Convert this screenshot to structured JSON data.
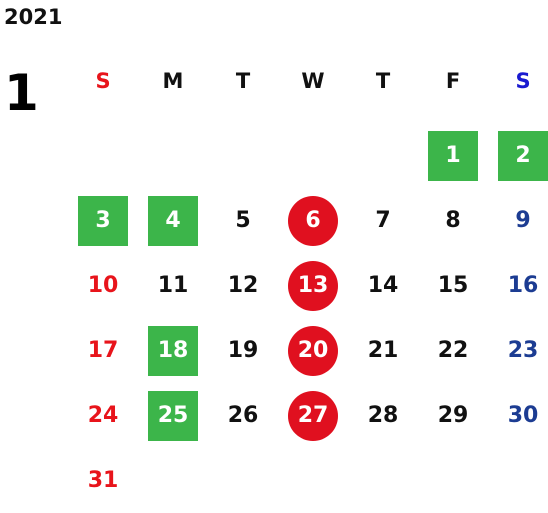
{
  "year": "2021",
  "month": "1",
  "weekdays": [
    "S",
    "M",
    "T",
    "W",
    "T",
    "F",
    "S"
  ],
  "days": [
    {
      "label": "1",
      "col": 6,
      "row": 1,
      "style": "green"
    },
    {
      "label": "2",
      "col": 7,
      "row": 1,
      "style": "green"
    },
    {
      "label": "3",
      "col": 1,
      "row": 2,
      "style": "green"
    },
    {
      "label": "4",
      "col": 2,
      "row": 2,
      "style": "green"
    },
    {
      "label": "5",
      "col": 3,
      "row": 2,
      "style": "plain"
    },
    {
      "label": "6",
      "col": 4,
      "row": 2,
      "style": "red"
    },
    {
      "label": "7",
      "col": 5,
      "row": 2,
      "style": "plain"
    },
    {
      "label": "8",
      "col": 6,
      "row": 2,
      "style": "plain"
    },
    {
      "label": "9",
      "col": 7,
      "row": 2,
      "style": "plain"
    },
    {
      "label": "10",
      "col": 1,
      "row": 3,
      "style": "plain"
    },
    {
      "label": "11",
      "col": 2,
      "row": 3,
      "style": "plain"
    },
    {
      "label": "12",
      "col": 3,
      "row": 3,
      "style": "plain"
    },
    {
      "label": "13",
      "col": 4,
      "row": 3,
      "style": "red"
    },
    {
      "label": "14",
      "col": 5,
      "row": 3,
      "style": "plain"
    },
    {
      "label": "15",
      "col": 6,
      "row": 3,
      "style": "plain"
    },
    {
      "label": "16",
      "col": 7,
      "row": 3,
      "style": "plain"
    },
    {
      "label": "17",
      "col": 1,
      "row": 4,
      "style": "plain"
    },
    {
      "label": "18",
      "col": 2,
      "row": 4,
      "style": "green"
    },
    {
      "label": "19",
      "col": 3,
      "row": 4,
      "style": "plain"
    },
    {
      "label": "20",
      "col": 4,
      "row": 4,
      "style": "red"
    },
    {
      "label": "21",
      "col": 5,
      "row": 4,
      "style": "plain"
    },
    {
      "label": "22",
      "col": 6,
      "row": 4,
      "style": "plain"
    },
    {
      "label": "23",
      "col": 7,
      "row": 4,
      "style": "plain"
    },
    {
      "label": "24",
      "col": 1,
      "row": 5,
      "style": "plain"
    },
    {
      "label": "25",
      "col": 2,
      "row": 5,
      "style": "green"
    },
    {
      "label": "26",
      "col": 3,
      "row": 5,
      "style": "plain"
    },
    {
      "label": "27",
      "col": 4,
      "row": 5,
      "style": "red"
    },
    {
      "label": "28",
      "col": 5,
      "row": 5,
      "style": "plain"
    },
    {
      "label": "29",
      "col": 6,
      "row": 5,
      "style": "plain"
    },
    {
      "label": "30",
      "col": 7,
      "row": 5,
      "style": "plain"
    },
    {
      "label": "31",
      "col": 1,
      "row": 6,
      "style": "plain"
    }
  ],
  "colors": {
    "holiday_green": "#3cb54a",
    "highlight_red": "#e0101f",
    "sunday_red": "#e8141b",
    "saturday_blue": "#1c3c92"
  }
}
